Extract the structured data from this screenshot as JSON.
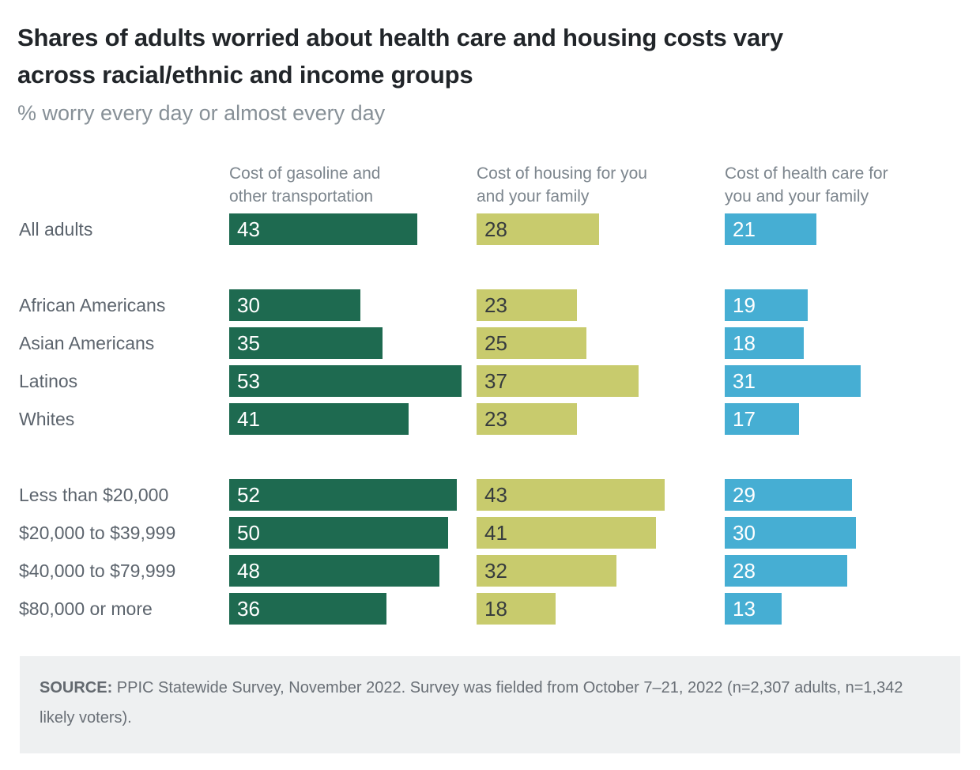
{
  "header": {
    "title": "Shares of adults worried about health care and housing costs vary\nacross racial/ethnic and income groups",
    "subtitle": "% worry every day or almost every day"
  },
  "column_headers": [
    "Cost of gasoline and\nother transportation",
    "Cost of housing for you\nand your family",
    "Cost of health care for\nyou and your family"
  ],
  "chart_data": {
    "type": "bar",
    "orientation": "horizontal",
    "title": "Shares of adults worried about health care and housing costs vary across racial/ethnic and income groups",
    "subtitle": "% worry every day or almost every day",
    "unit": "%",
    "xlim": [
      0,
      55
    ],
    "grid": false,
    "bar_labels": true,
    "categories": [
      "All adults",
      "African Americans",
      "Asian Americans",
      "Latinos",
      "Whites",
      "Less than $20,000",
      "$20,000 to $39,999",
      "$40,000 to $79,999",
      "$80,000 or more"
    ],
    "groups": [
      [
        0
      ],
      [
        1,
        2,
        3,
        4
      ],
      [
        5,
        6,
        7,
        8
      ]
    ],
    "series": [
      {
        "key": "gasoline",
        "name": "Cost of gasoline and other transportation",
        "color": "#1e6a50",
        "label_color": "#ffffff",
        "values": [
          43,
          30,
          35,
          53,
          41,
          52,
          50,
          48,
          36
        ]
      },
      {
        "key": "housing",
        "name": "Cost of housing for you and your family",
        "color": "#c8cb6d",
        "label_color": "#373c3e",
        "values": [
          28,
          23,
          25,
          37,
          23,
          43,
          41,
          32,
          18
        ]
      },
      {
        "key": "healthcare",
        "name": "Cost of health care for you and your family",
        "color": "#46aed3",
        "label_color": "#ffffff",
        "values": [
          21,
          19,
          18,
          31,
          17,
          29,
          30,
          28,
          13
        ]
      }
    ]
  },
  "footer": {
    "source_label": "SOURCE:",
    "source_text": "PPIC Statewide Survey, November 2022. Survey was fielded from October 7–21, 2022 (n=2,307 adults, n=1,342 likely voters)."
  }
}
